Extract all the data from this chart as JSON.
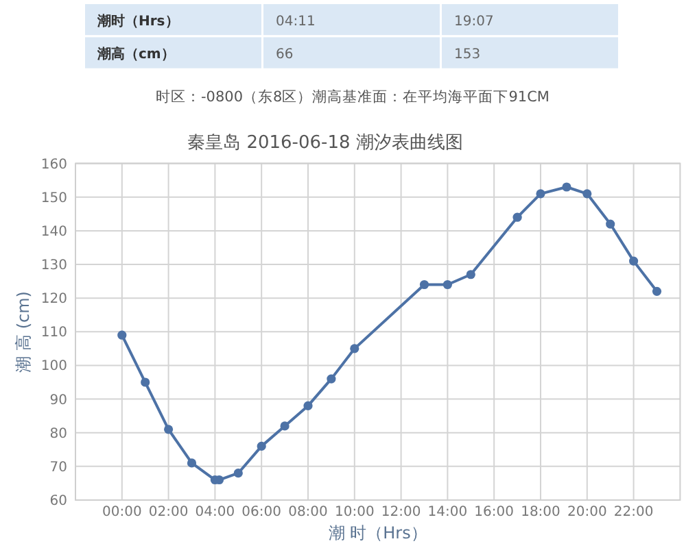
{
  "chart_data": [
    {
      "type": "other",
      "annotations": [
        "潮时（Hrs）",
        "04:11",
        "19:07",
        "潮高（cm）",
        "66",
        "153",
        "时区：-0800（东8区）潮高基准面：在平均海平面下91CM"
      ]
    },
    {
      "type": "line",
      "title": "秦皇岛 2016-06-18 潮汐表曲线图",
      "xlabel": "潮 时（Hrs）",
      "ylabel": "潮 高 (cm)",
      "x": [
        0,
        1,
        2,
        3,
        4,
        4.18,
        5,
        6,
        7,
        8,
        9,
        10,
        13,
        14,
        15,
        17,
        18,
        19.12,
        20,
        21,
        22,
        23
      ],
      "series": [
        {
          "color": "#4d72a6",
          "values": [
            109,
            95,
            81,
            71,
            66,
            66,
            68,
            76,
            82,
            88,
            96,
            105,
            124,
            124,
            127,
            144,
            151,
            153,
            151,
            142,
            131,
            122
          ]
        }
      ],
      "xlim": [
        -2,
        24
      ],
      "xticks": [
        {
          "value": 0,
          "label": "00:00"
        },
        {
          "value": 2,
          "label": "02:00"
        },
        {
          "value": 4,
          "label": "04:00"
        },
        {
          "value": 6,
          "label": "06:00"
        },
        {
          "value": 8,
          "label": "08:00"
        },
        {
          "value": 10,
          "label": "10:00"
        },
        {
          "value": 12,
          "label": "12:00"
        },
        {
          "value": 14,
          "label": "14:00"
        },
        {
          "value": 16,
          "label": "16:00"
        },
        {
          "value": 18,
          "label": "18:00"
        },
        {
          "value": 20,
          "label": "20:00"
        },
        {
          "value": 22,
          "label": "22:00"
        }
      ],
      "ylim": [
        60,
        160
      ],
      "yticks": [
        60,
        70,
        80,
        90,
        100,
        110,
        120,
        130,
        140,
        150,
        160
      ],
      "grid": true,
      "marker": "circle",
      "line_style": "solid"
    }
  ]
}
